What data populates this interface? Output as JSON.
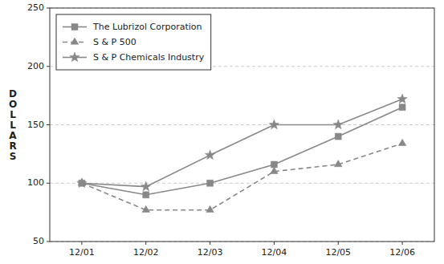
{
  "chart_data": {
    "type": "line",
    "categories": [
      "12/01",
      "12/02",
      "12/03",
      "12/04",
      "12/05",
      "12/06"
    ],
    "series": [
      {
        "name": "The Lubrizol Corporation",
        "color": "#888888",
        "marker": "square",
        "line_style": "solid",
        "values": [
          100,
          90,
          100,
          116,
          140,
          165
        ]
      },
      {
        "name": "S & P 500",
        "color": "#888888",
        "marker": "triangle",
        "line_style": "dashed",
        "values": [
          100,
          77,
          77,
          110,
          116,
          134
        ]
      },
      {
        "name": "S & P Chemicals Industry",
        "color": "#888888",
        "marker": "star",
        "line_style": "solid",
        "values": [
          100,
          97,
          124,
          150,
          150,
          172
        ]
      }
    ],
    "y_label": "D\nO\nL\nL\nA\nR\nS",
    "ylim": [
      50,
      250
    ],
    "yticks": [
      50,
      100,
      150,
      200,
      250
    ],
    "grid": true,
    "legend": "upper left"
  }
}
